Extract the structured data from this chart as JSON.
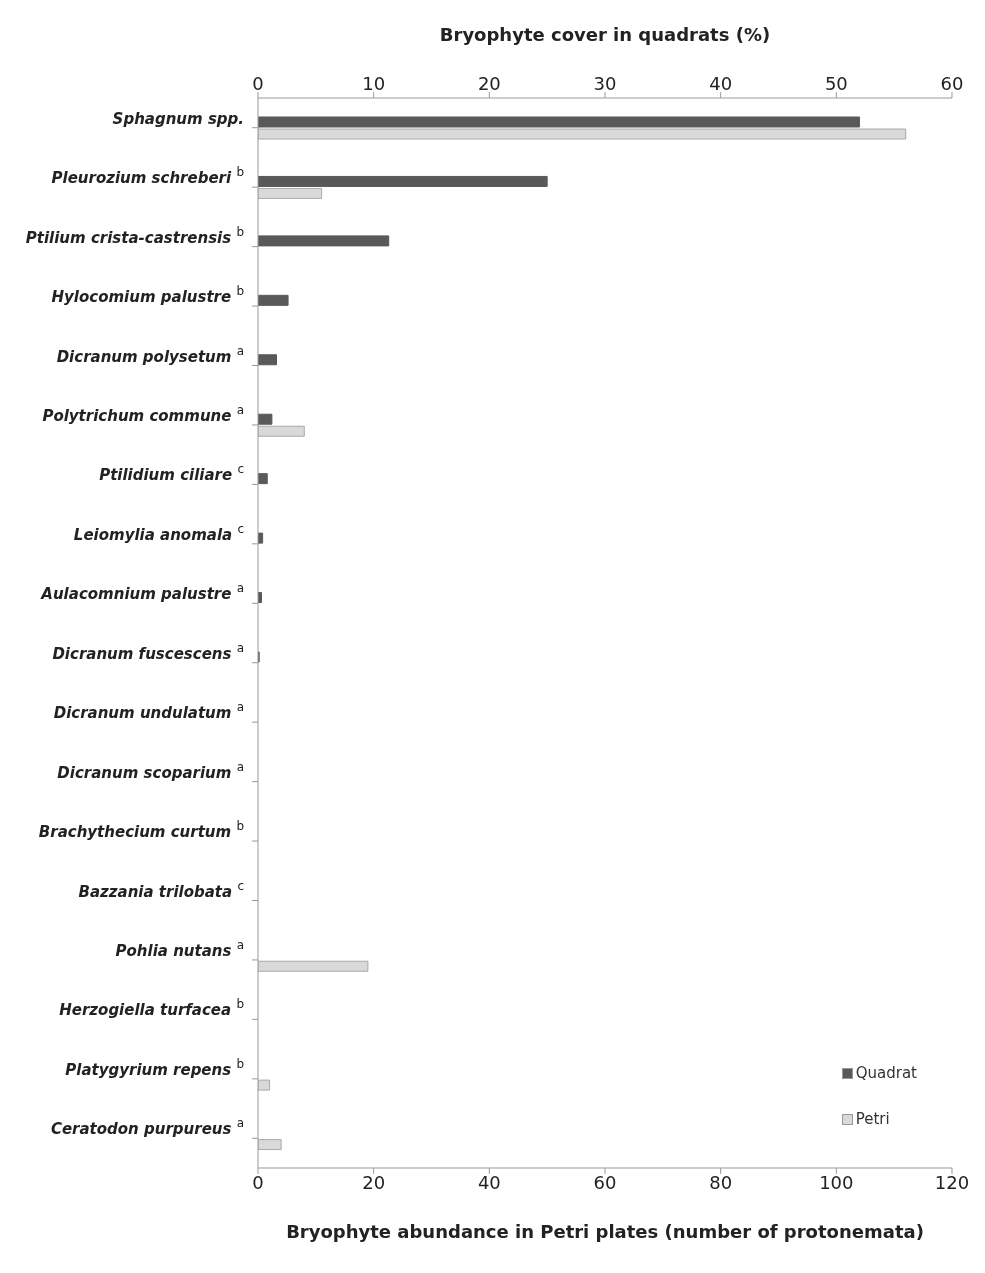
{
  "chart_data": {
    "type": "bar",
    "orientation": "horizontal",
    "categories": [
      "Sphagnum  spp.",
      "Pleurozium schreberi $^{b}$",
      "Ptilium crista-castrensis $^{b}$",
      "Hylocomium palustre $^{b}$",
      "Dicranum polysetum $^{a}$",
      "Polytrichum commune $^{a}$",
      "Ptilidium ciliare $^{c}$",
      "Leiomylia anomala $^{c}$",
      "Aulacomnium palustre $^{a}$",
      "Dicranum fuscescens $^{a}$",
      "Dicranum undulatum $^{a}$",
      "Dicranum scoparium $^{a}$",
      "Brachythecium curtum $^{b}$",
      "Bazzania trilobata $^{c}$",
      "Pohlia nutans $^{a}$",
      "Herzogiella turfacea $^{b}$",
      "Platygyrium  repens $^{b}$",
      "Ceratodon purpureus $^{a}$"
    ],
    "series": [
      {
        "name": "Quadrat",
        "color": "#595959",
        "axis": "x2",
        "values": [
          52,
          25,
          11.3,
          2.6,
          1.6,
          1.2,
          0.8,
          0.4,
          0.3,
          0.1,
          0,
          0,
          0,
          0,
          0,
          0,
          0,
          0
        ]
      },
      {
        "name": "Petri",
        "color": "#d9d9d9",
        "values": [
          112,
          11,
          0,
          0,
          0,
          8,
          0,
          0,
          0,
          0,
          0,
          0,
          0,
          0,
          19,
          0,
          2,
          4
        ]
      }
    ],
    "xlabel": "Bryophyte abundance in Petri plates (number of protonemata)",
    "x2label": "Bryophyte cover in quadrats (%)",
    "xlim": [
      0,
      120
    ],
    "xticks": [
      0,
      20,
      40,
      60,
      80,
      100,
      120
    ],
    "x2lim": [
      0,
      60
    ],
    "x2ticks": [
      0,
      10,
      20,
      30,
      40,
      50,
      60
    ],
    "legend": "bottom right",
    "grid": false
  }
}
